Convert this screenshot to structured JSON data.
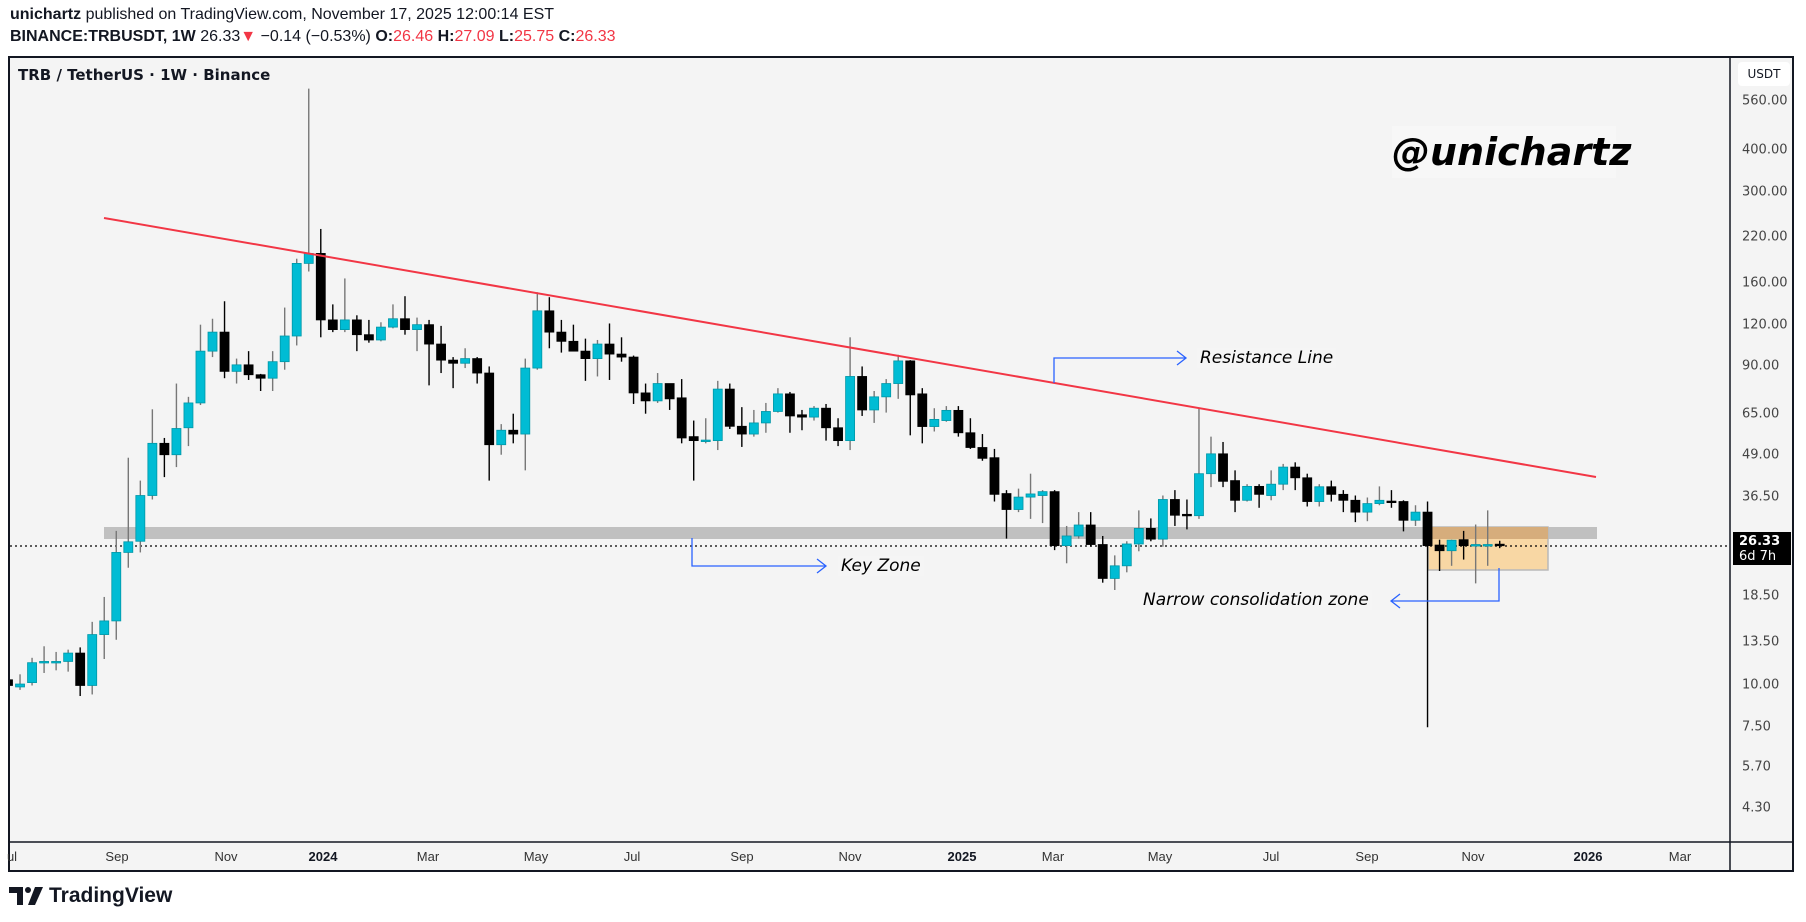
{
  "header": {
    "author": "unichartz",
    "published_text": "published on TradingView.com, November 17, 2025 12:00:14 EST",
    "symbol": "BINANCE:TRBUSDT, 1W",
    "last": "26.33",
    "change": "−0.14 (−0.53%)",
    "o_label": "O:",
    "o": "26.46",
    "h_label": "H:",
    "h": "27.09",
    "l_label": "L:",
    "l": "25.75",
    "c_label": "C:",
    "c": "26.33"
  },
  "colors": {
    "up": "#00bcd4",
    "down": "#000000",
    "trendline": "#f23645",
    "annotation_arrow": "#2962ff",
    "key_zone": "#c0c0c0",
    "consolidation_zone": "#f8d49b",
    "negative": "#f23645"
  },
  "chart_data": {
    "type": "candlestick",
    "title": "TRB / TetherUS · 1W · Binance",
    "currency_button": "USDT",
    "scale": "log",
    "ylim": [
      4.3,
      560
    ],
    "y_ticks": [
      "560.00",
      "400.00",
      "300.00",
      "220.00",
      "160.00",
      "120.00",
      "90.00",
      "65.00",
      "49.00",
      "36.50",
      "18.50",
      "13.50",
      "10.00",
      "7.50",
      "5.70",
      "4.30"
    ],
    "x_ticks": [
      {
        "label": "ul",
        "bold": false
      },
      {
        "label": "Sep",
        "bold": false
      },
      {
        "label": "Nov",
        "bold": false
      },
      {
        "label": "2024",
        "bold": true
      },
      {
        "label": "Mar",
        "bold": false
      },
      {
        "label": "May",
        "bold": false
      },
      {
        "label": "Jul",
        "bold": false
      },
      {
        "label": "Sep",
        "bold": false
      },
      {
        "label": "Nov",
        "bold": false
      },
      {
        "label": "2025",
        "bold": true
      },
      {
        "label": "Mar",
        "bold": false
      },
      {
        "label": "May",
        "bold": false
      },
      {
        "label": "Jul",
        "bold": false
      },
      {
        "label": "Sep",
        "bold": false
      },
      {
        "label": "Nov",
        "bold": false
      },
      {
        "label": "2026",
        "bold": true
      },
      {
        "label": "Mar",
        "bold": false
      }
    ],
    "last_price": {
      "value": "26.33",
      "countdown": "6d 7h"
    },
    "ohlc_fields": [
      "open",
      "high",
      "low",
      "close"
    ],
    "candles": [
      [
        10.4,
        10.5,
        9.9,
        10.0
      ],
      [
        9.9,
        10.8,
        9.7,
        10.1
      ],
      [
        10.2,
        12.1,
        10.0,
        11.7
      ],
      [
        11.8,
        13.1,
        10.9,
        11.8
      ],
      [
        11.8,
        12.6,
        11.1,
        11.8
      ],
      [
        11.8,
        12.8,
        11.0,
        12.5
      ],
      [
        12.5,
        13.0,
        9.3,
        10.0
      ],
      [
        10.0,
        15.5,
        9.4,
        14.2
      ],
      [
        14.2,
        18.4,
        12.0,
        15.6
      ],
      [
        15.6,
        29.0,
        13.7,
        25.0
      ],
      [
        25.0,
        48,
        22.5,
        26.9
      ],
      [
        27,
        41,
        25,
        37
      ],
      [
        37,
        67,
        36,
        53
      ],
      [
        53,
        55,
        42,
        49
      ],
      [
        49,
        80,
        45,
        58.7
      ],
      [
        59,
        73,
        52,
        70
      ],
      [
        70,
        120,
        69,
        100
      ],
      [
        100,
        125,
        96,
        114
      ],
      [
        114,
        141,
        83,
        87
      ],
      [
        87,
        95,
        80,
        91
      ],
      [
        91,
        100,
        82,
        85
      ],
      [
        85,
        85.5,
        76,
        83
      ],
      [
        83,
        100,
        76,
        93
      ],
      [
        93,
        135,
        88,
        111
      ],
      [
        111,
        189,
        104,
        183
      ],
      [
        183,
        610,
        173,
        196
      ],
      [
        196,
        232,
        110,
        124
      ],
      [
        124,
        138,
        114,
        116
      ],
      [
        116,
        165,
        114,
        124
      ],
      [
        124,
        128,
        100,
        112
      ],
      [
        112,
        124,
        106,
        108
      ],
      [
        108,
        122,
        107,
        118
      ],
      [
        118,
        138,
        117,
        125
      ],
      [
        125,
        146,
        112,
        116
      ],
      [
        116,
        126,
        100,
        120
      ],
      [
        120,
        124,
        79,
        105
      ],
      [
        105,
        119,
        86,
        94
      ],
      [
        94,
        96,
        77.5,
        92
      ],
      [
        92,
        102,
        89,
        95
      ],
      [
        95,
        96,
        80,
        86
      ],
      [
        86,
        90,
        41,
        52.5
      ],
      [
        52.5,
        60.5,
        49,
        58
      ],
      [
        58,
        65,
        53,
        56.5
      ],
      [
        56.5,
        95,
        44,
        89
      ],
      [
        89,
        150,
        88,
        132
      ],
      [
        132,
        145,
        102,
        114
      ],
      [
        114,
        124,
        99,
        107
      ],
      [
        107,
        120,
        100,
        100
      ],
      [
        100,
        109,
        81.5,
        95
      ],
      [
        95,
        108,
        84,
        105
      ],
      [
        105,
        121,
        82,
        98
      ],
      [
        98,
        110,
        93,
        96
      ],
      [
        96,
        97,
        69.5,
        75
      ],
      [
        75,
        80,
        65,
        71
      ],
      [
        71,
        86,
        70,
        80
      ],
      [
        80,
        80,
        66.7,
        72
      ],
      [
        72.5,
        82.5,
        53,
        55
      ],
      [
        55.5,
        62,
        41,
        54
      ],
      [
        54.2,
        63,
        53,
        54.2
      ],
      [
        54,
        81.5,
        50.6,
        77
      ],
      [
        77,
        80,
        58.5,
        59.6
      ],
      [
        59.6,
        68,
        51.7,
        56.5
      ],
      [
        56.5,
        66.7,
        55.5,
        61
      ],
      [
        61,
        70,
        57,
        66
      ],
      [
        66,
        77.5,
        65.5,
        74.5
      ],
      [
        74.5,
        75.5,
        57,
        64
      ],
      [
        64.5,
        66.7,
        58,
        63.5
      ],
      [
        63.5,
        68.5,
        62,
        67.5
      ],
      [
        67.5,
        69.5,
        54,
        59
      ],
      [
        59,
        63,
        52,
        54
      ],
      [
        54,
        110,
        50.6,
        84
      ],
      [
        84,
        90,
        64,
        66.7
      ],
      [
        66.7,
        76,
        61,
        73
      ],
      [
        73,
        82.5,
        65.5,
        80
      ],
      [
        80,
        97.5,
        72,
        93.5
      ],
      [
        93.5,
        94,
        56,
        74
      ],
      [
        74.5,
        77.5,
        53,
        59.5
      ],
      [
        59.5,
        67.5,
        57.5,
        62.5
      ],
      [
        62,
        68.5,
        61.5,
        66.5
      ],
      [
        66.5,
        68.5,
        55.5,
        57
      ],
      [
        57,
        63,
        51,
        51.5
      ],
      [
        51.5,
        56.5,
        47,
        47.8
      ],
      [
        48,
        51,
        35.5,
        37.3
      ],
      [
        37.5,
        38.4,
        27.5,
        33.6
      ],
      [
        33.6,
        38.8,
        33,
        36.6
      ],
      [
        36.6,
        43,
        31.5,
        37.4
      ],
      [
        37,
        38.4,
        30.6,
        38
      ],
      [
        38,
        38.4,
        25.4,
        26.2
      ],
      [
        26.2,
        30,
        23.2,
        28
      ],
      [
        28,
        33,
        27.5,
        30.2
      ],
      [
        30.2,
        33,
        26,
        26.4
      ],
      [
        26.4,
        28,
        20.3,
        20.9
      ],
      [
        20.9,
        24.5,
        19.3,
        22.8
      ],
      [
        22.8,
        27,
        21.8,
        26.5
      ],
      [
        26.5,
        33.4,
        25.2,
        29.5
      ],
      [
        29.5,
        31.6,
        27,
        27.4
      ],
      [
        27.4,
        37,
        26,
        36
      ],
      [
        36,
        38.4,
        30,
        32.3
      ],
      [
        32.5,
        36,
        29.3,
        32.2
      ],
      [
        32.2,
        67.5,
        31.5,
        43
      ],
      [
        43,
        55.5,
        39.2,
        49.3
      ],
      [
        49.3,
        53.5,
        39.2,
        40.8
      ],
      [
        41,
        44,
        33,
        35.8
      ],
      [
        35.8,
        40,
        35.5,
        39.4
      ],
      [
        39.4,
        40,
        34,
        37.3
      ],
      [
        37,
        44,
        35.8,
        40
      ],
      [
        40,
        46,
        38.4,
        45
      ],
      [
        45,
        46.5,
        38.4,
        41.8
      ],
      [
        41.8,
        43,
        34.3,
        35.5
      ],
      [
        35.5,
        40,
        34.3,
        39.3
      ],
      [
        39.3,
        41,
        35.5,
        37.3
      ],
      [
        37.3,
        38.4,
        33,
        35.8
      ],
      [
        35.8,
        37,
        30.8,
        33
      ],
      [
        33,
        36.5,
        31,
        35
      ],
      [
        35,
        39.4,
        34.6,
        35.8
      ],
      [
        35.6,
        38.4,
        34,
        35.4
      ],
      [
        35.5,
        35.8,
        28.9,
        31.2
      ],
      [
        31.2,
        34.6,
        30,
        33
      ],
      [
        33,
        35.5,
        7.5,
        26.2
      ],
      [
        26.3,
        27.3,
        22,
        25.3
      ],
      [
        25.3,
        27.3,
        22.8,
        27.2
      ],
      [
        27.3,
        29,
        23.8,
        26.2
      ],
      [
        26.2,
        30.3,
        20.2,
        26.4
      ],
      [
        26.4,
        33.4,
        22.8,
        26.4
      ],
      [
        26.46,
        27.09,
        25.75,
        26.33
      ]
    ],
    "drawings": {
      "resistance_line": {
        "label": "Resistance Line"
      },
      "key_zone": {
        "label": "Key Zone",
        "price_range": [
          27.8,
          30.0
        ]
      },
      "consolidation_zone": {
        "label": "Narrow consolidation zone",
        "price_range": [
          21.4,
          27.8
        ]
      }
    }
  },
  "watermark": "@unichartz",
  "footer": {
    "brand": "TradingView"
  }
}
